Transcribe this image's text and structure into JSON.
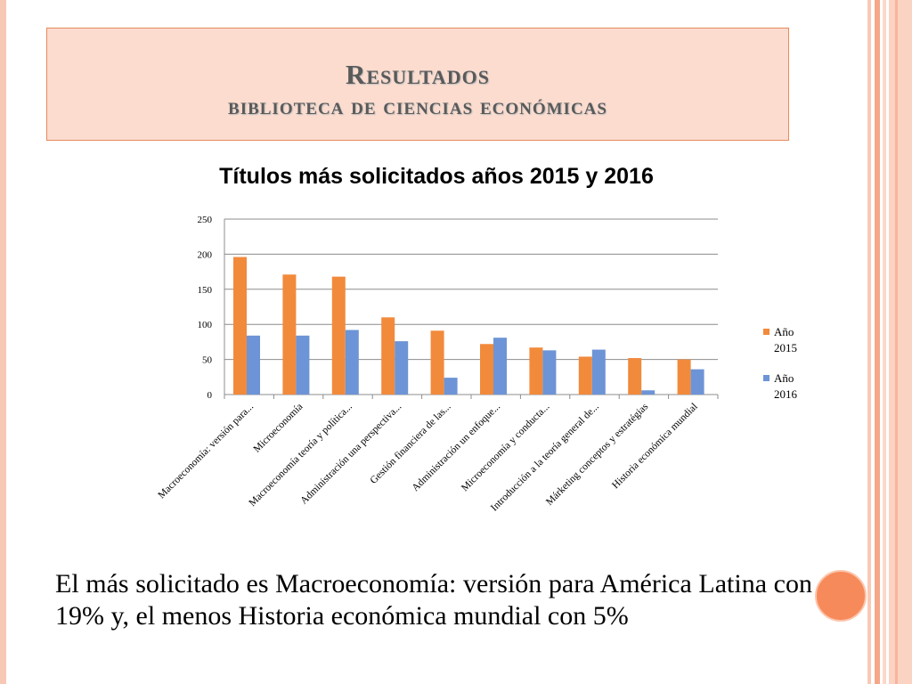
{
  "slide": {
    "title": "Resultados",
    "subtitle": "biblioteca de ciencias económicas",
    "caption": "El más solicitado es Macroeconomía: versión para América Latina con 19% y, el menos Historia económica mundial con 5%"
  },
  "colors": {
    "accent": "#f78a5a",
    "series2015": "#f28a3c",
    "series2016": "#6d94d6"
  },
  "chart_data": {
    "type": "bar",
    "title": "Títulos más solicitados años 2015 y 2016",
    "xlabel": "",
    "ylabel": "",
    "ylim": [
      0,
      250
    ],
    "yticks": [
      "0",
      "50",
      "100",
      "150",
      "200",
      "250"
    ],
    "grid": true,
    "legend_position": "right",
    "categories": [
      "Macroeconomía: versión para...",
      "Microeconomía",
      "Macroeconomía teoría y política...",
      "Administración una perspectiva...",
      "Gestión financiera de las...",
      "Administración un enfoque...",
      "Microeconomía y conducta...",
      "Introducción a la teoría general de...",
      "Márketing conceptos y estratégias",
      "Historia económica mundial"
    ],
    "series": [
      {
        "name": "Año 2015",
        "values": [
          196,
          171,
          168,
          110,
          91,
          72,
          67,
          54,
          52,
          50
        ]
      },
      {
        "name": "Año 2016",
        "values": [
          84,
          84,
          92,
          76,
          24,
          81,
          63,
          64,
          6,
          36
        ]
      }
    ]
  }
}
